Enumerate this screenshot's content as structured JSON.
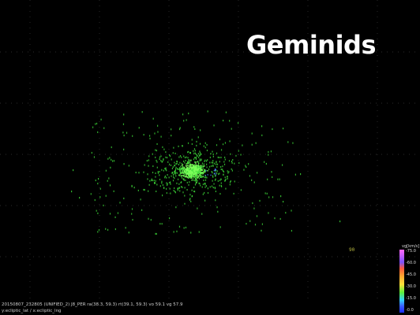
{
  "title": "Geminids",
  "marker_label": "90",
  "footer": {
    "line1": "20150807_232805 (UNIFIED_2) J8_PER ra(38.3, 59.3) rt(39.1, 59.3) vo 59.1 vg 57.9",
    "line2": "y:ecliptic_lat / x:ecliptic_lng"
  },
  "colorbar": {
    "title": "vg[km/s]",
    "ticks": [
      "-75.0",
      "-60.0",
      "-45.0",
      "-30.0",
      "-15.0",
      "-0.0"
    ]
  },
  "colors": {
    "background": "#000000",
    "grid": "#3a3a3a",
    "point_main": "#3fe03a",
    "point_core": "#7dff5a",
    "point_blue": "#4c7bff"
  }
}
